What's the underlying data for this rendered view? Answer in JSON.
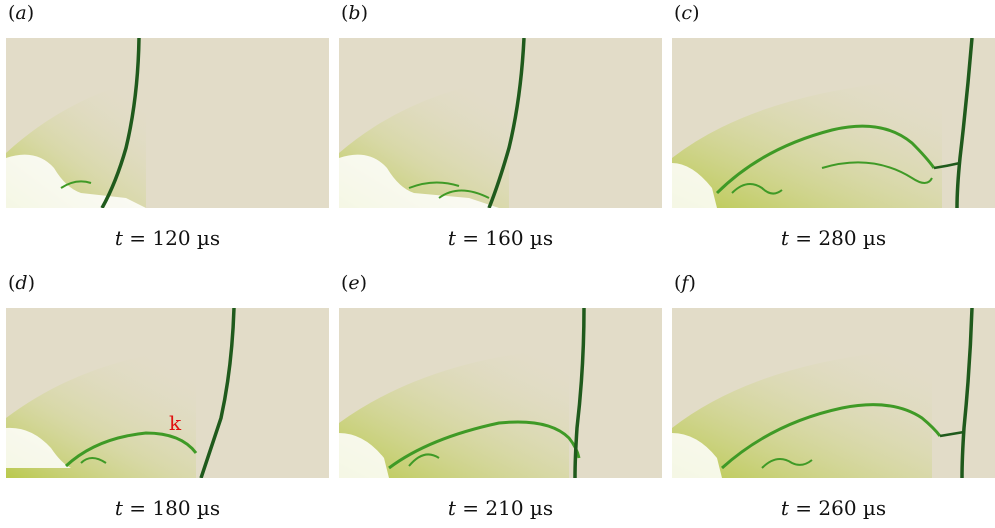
{
  "panels": [
    {
      "label": "a",
      "caption_var": "t",
      "caption_rest": " = 120 µs"
    },
    {
      "label": "b",
      "caption_var": "t",
      "caption_rest": " = 160 µs"
    },
    {
      "label": "c",
      "caption_var": "t",
      "caption_rest": " = 280 µs"
    },
    {
      "label": "d",
      "caption_var": "t",
      "caption_rest": " = 180 µs",
      "annotation": "k"
    },
    {
      "label": "e",
      "caption_var": "t",
      "caption_rest": " = 210 µs"
    },
    {
      "label": "f",
      "caption_var": "t",
      "caption_rest": " = 260 µs"
    }
  ],
  "colors": {
    "background": "#e2dcc8",
    "shock": "#1f5a1c",
    "wave": "#3f9a26",
    "glow": "#c9d36a",
    "annotation": "#e01010"
  }
}
